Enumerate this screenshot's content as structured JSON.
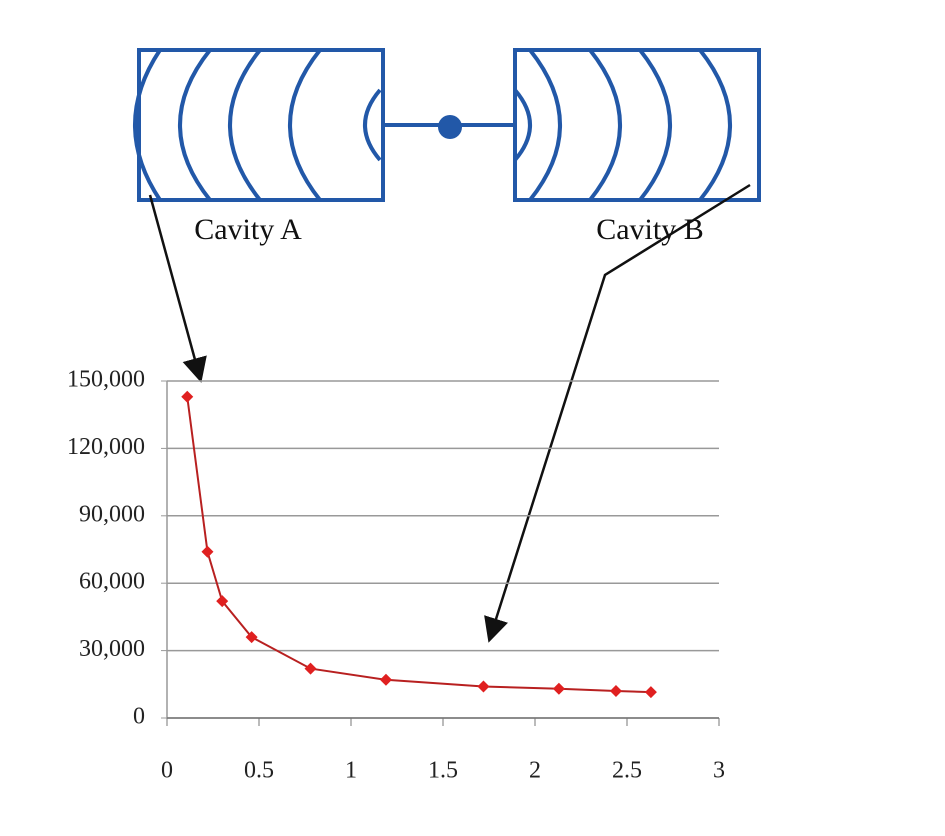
{
  "annotations": [
    "Cavity A",
    "Cavity B"
  ],
  "chart_data": {
    "type": "line",
    "x": [
      0.11,
      0.22,
      0.3,
      0.46,
      0.78,
      1.19,
      1.72,
      2.13,
      2.44,
      2.63
    ],
    "values": [
      143000,
      74000,
      52000,
      36000,
      22000,
      17000,
      14000,
      13000,
      12000,
      11500
    ],
    "color": "#e02020",
    "line_color": "#b82020",
    "xlim": [
      0,
      3
    ],
    "xticks": [
      0,
      0.5,
      1,
      1.5,
      2,
      2.5,
      3
    ],
    "ylim": [
      0,
      150000
    ],
    "yticks": [
      0,
      {
        "value": 30000,
        "label": "30,000"
      },
      {
        "value": 60000,
        "label": "60,000"
      },
      {
        "value": 90000,
        "label": "90,000"
      },
      {
        "value": 120000,
        "label": "120,000"
      },
      {
        "value": 150000,
        "label": "150,000"
      }
    ],
    "grid": true
  }
}
